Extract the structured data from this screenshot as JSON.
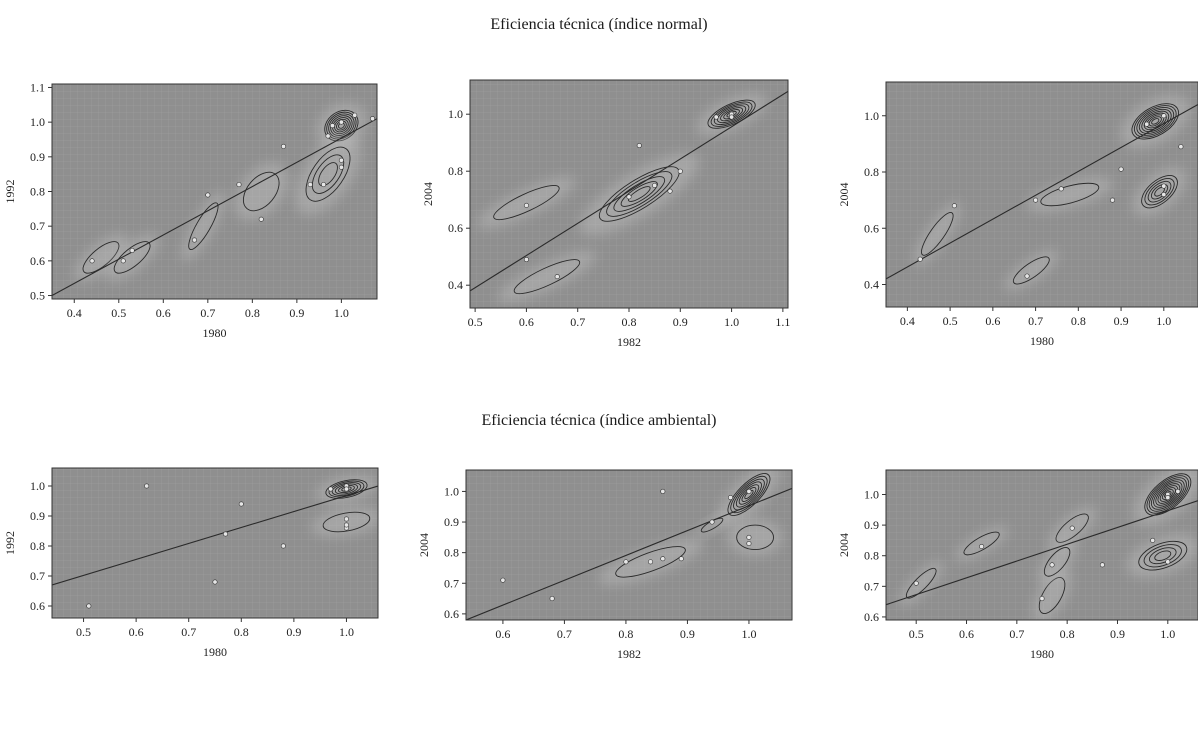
{
  "section_titles": {
    "top": "Eficiencia técnica (índice normal)",
    "bottom": "Eficiencia técnica (índice ambiental)"
  },
  "colors": {
    "plot_bg": "#8f8f8f",
    "grid": "#a9a9a9",
    "contour": "#2a2a2a",
    "halo": "#cfcfcf",
    "point": "#e6e6e6"
  },
  "chart_data": [
    {
      "type": "scatter",
      "xlabel": "1980",
      "ylabel": "1992",
      "xlim": [
        0.35,
        1.08
      ],
      "ylim": [
        0.49,
        1.11
      ],
      "xticks": [
        "0.4",
        "0.5",
        "0.6",
        "0.7",
        "0.8",
        "0.9",
        "1.0"
      ],
      "yticks": [
        "0.5",
        "0.6",
        "0.7",
        "0.8",
        "0.9",
        "1.0",
        "1.1"
      ],
      "diagonal": [
        [
          0.35,
          0.5
        ],
        [
          1.08,
          1.01
        ]
      ],
      "points": [
        [
          0.44,
          0.6
        ],
        [
          0.51,
          0.6
        ],
        [
          0.53,
          0.63
        ],
        [
          0.67,
          0.66
        ],
        [
          0.7,
          0.79
        ],
        [
          0.77,
          0.82
        ],
        [
          0.82,
          0.72
        ],
        [
          0.87,
          0.93
        ],
        [
          0.93,
          0.82
        ],
        [
          0.96,
          0.82
        ],
        [
          0.97,
          0.96
        ],
        [
          0.98,
          0.99
        ],
        [
          1.0,
          1.0
        ],
        [
          1.0,
          0.89
        ],
        [
          1.0,
          0.87
        ],
        [
          1.03,
          1.02
        ],
        [
          1.07,
          1.01
        ]
      ],
      "density": [
        {
          "cx": 1.0,
          "cy": 0.99,
          "sx": 0.04,
          "sy": 0.04,
          "rot": 35,
          "levels": 8
        },
        {
          "cx": 0.97,
          "cy": 0.85,
          "sx": 0.07,
          "sy": 0.045,
          "rot": 55,
          "levels": 3
        },
        {
          "cx": 0.46,
          "cy": 0.61,
          "sx": 0.05,
          "sy": 0.025,
          "rot": 40,
          "levels": 1
        },
        {
          "cx": 0.53,
          "cy": 0.61,
          "sx": 0.05,
          "sy": 0.025,
          "rot": 40,
          "levels": 1
        },
        {
          "cx": 0.69,
          "cy": 0.7,
          "sx": 0.06,
          "sy": 0.02,
          "rot": 60,
          "levels": 1
        },
        {
          "cx": 0.82,
          "cy": 0.8,
          "sx": 0.05,
          "sy": 0.04,
          "rot": 50,
          "levels": 1
        }
      ]
    },
    {
      "type": "scatter",
      "xlabel": "1982",
      "ylabel": "2004",
      "xlim": [
        0.49,
        1.11
      ],
      "ylim": [
        0.32,
        1.12
      ],
      "xticks": [
        "0.5",
        "0.6",
        "0.7",
        "0.8",
        "0.9",
        "1.0",
        "1.1"
      ],
      "yticks": [
        "0.4",
        "0.6",
        "0.8",
        "1.0"
      ],
      "diagonal": [
        [
          0.49,
          0.38
        ],
        [
          1.11,
          1.08
        ]
      ],
      "points": [
        [
          0.6,
          0.49
        ],
        [
          0.6,
          0.68
        ],
        [
          0.66,
          0.43
        ],
        [
          0.8,
          0.71
        ],
        [
          0.82,
          0.89
        ],
        [
          0.85,
          0.75
        ],
        [
          0.88,
          0.73
        ],
        [
          0.9,
          0.8
        ],
        [
          0.97,
          0.99
        ],
        [
          1.0,
          1.0
        ],
        [
          1.0,
          0.99
        ]
      ],
      "density": [
        {
          "cx": 1.0,
          "cy": 1.0,
          "sx": 0.05,
          "sy": 0.035,
          "rot": 25,
          "levels": 7
        },
        {
          "cx": 0.82,
          "cy": 0.72,
          "sx": 0.09,
          "sy": 0.05,
          "rot": 32,
          "levels": 5
        },
        {
          "cx": 0.6,
          "cy": 0.69,
          "sx": 0.07,
          "sy": 0.03,
          "rot": 25,
          "levels": 1
        },
        {
          "cx": 0.64,
          "cy": 0.43,
          "sx": 0.07,
          "sy": 0.03,
          "rot": 25,
          "levels": 1
        }
      ]
    },
    {
      "type": "scatter",
      "xlabel": "1980",
      "ylabel": "2004",
      "xlim": [
        0.35,
        1.08
      ],
      "ylim": [
        0.32,
        1.12
      ],
      "xticks": [
        "0.4",
        "0.5",
        "0.6",
        "0.7",
        "0.8",
        "0.9",
        "1.0"
      ],
      "yticks": [
        "0.4",
        "0.6",
        "0.8",
        "1.0"
      ],
      "diagonal": [
        [
          0.35,
          0.42
        ],
        [
          1.08,
          1.04
        ]
      ],
      "points": [
        [
          0.43,
          0.49
        ],
        [
          0.51,
          0.68
        ],
        [
          0.68,
          0.43
        ],
        [
          0.7,
          0.7
        ],
        [
          0.76,
          0.74
        ],
        [
          0.88,
          0.7
        ],
        [
          0.9,
          0.81
        ],
        [
          0.96,
          0.97
        ],
        [
          1.0,
          1.0
        ],
        [
          1.0,
          0.72
        ],
        [
          1.0,
          0.75
        ],
        [
          1.04,
          0.89
        ]
      ],
      "density": [
        {
          "cx": 0.98,
          "cy": 0.98,
          "sx": 0.06,
          "sy": 0.05,
          "rot": 30,
          "levels": 9
        },
        {
          "cx": 0.99,
          "cy": 0.73,
          "sx": 0.05,
          "sy": 0.04,
          "rot": 40,
          "levels": 5
        },
        {
          "cx": 0.47,
          "cy": 0.58,
          "sx": 0.06,
          "sy": 0.025,
          "rot": 55,
          "levels": 1
        },
        {
          "cx": 0.69,
          "cy": 0.45,
          "sx": 0.05,
          "sy": 0.025,
          "rot": 35,
          "levels": 1
        },
        {
          "cx": 0.78,
          "cy": 0.72,
          "sx": 0.07,
          "sy": 0.03,
          "rot": 15,
          "levels": 1
        }
      ]
    },
    {
      "type": "scatter",
      "xlabel": "1980",
      "ylabel": "1992",
      "xlim": [
        0.44,
        1.06
      ],
      "ylim": [
        0.56,
        1.06
      ],
      "xticks": [
        "0.5",
        "0.6",
        "0.7",
        "0.8",
        "0.9",
        "1.0"
      ],
      "yticks": [
        "0.6",
        "0.7",
        "0.8",
        "0.9",
        "1.0"
      ],
      "diagonal": [
        [
          0.44,
          0.67
        ],
        [
          1.06,
          1.0
        ]
      ],
      "points": [
        [
          0.51,
          0.6
        ],
        [
          0.62,
          1.0
        ],
        [
          0.75,
          0.68
        ],
        [
          0.77,
          0.84
        ],
        [
          0.8,
          0.94
        ],
        [
          0.88,
          0.8
        ],
        [
          0.97,
          0.99
        ],
        [
          1.0,
          1.0
        ],
        [
          1.0,
          0.99
        ],
        [
          1.0,
          0.89
        ],
        [
          1.0,
          0.86
        ],
        [
          1.0,
          0.87
        ]
      ],
      "density": [
        {
          "cx": 1.0,
          "cy": 0.99,
          "sx": 0.04,
          "sy": 0.028,
          "rot": 12,
          "levels": 6
        },
        {
          "cx": 1.0,
          "cy": 0.88,
          "sx": 0.045,
          "sy": 0.03,
          "rot": 10,
          "levels": 1
        }
      ]
    },
    {
      "type": "scatter",
      "xlabel": "1982",
      "ylabel": "2004",
      "xlim": [
        0.54,
        1.07
      ],
      "ylim": [
        0.58,
        1.07
      ],
      "xticks": [
        "0.6",
        "0.7",
        "0.8",
        "0.9",
        "1.0"
      ],
      "yticks": [
        "0.6",
        "0.7",
        "0.8",
        "0.9",
        "1.0"
      ],
      "diagonal": [
        [
          0.54,
          0.58
        ],
        [
          1.07,
          1.01
        ]
      ],
      "points": [
        [
          0.6,
          0.71
        ],
        [
          0.68,
          0.65
        ],
        [
          0.8,
          0.77
        ],
        [
          0.84,
          0.77
        ],
        [
          0.86,
          0.78
        ],
        [
          0.86,
          1.0
        ],
        [
          0.89,
          0.78
        ],
        [
          0.94,
          0.9
        ],
        [
          0.97,
          0.98
        ],
        [
          1.0,
          1.0
        ],
        [
          1.0,
          0.85
        ],
        [
          1.0,
          0.83
        ]
      ],
      "density": [
        {
          "cx": 1.0,
          "cy": 0.99,
          "sx": 0.045,
          "sy": 0.035,
          "rot": 45,
          "levels": 7
        },
        {
          "cx": 0.84,
          "cy": 0.77,
          "sx": 0.06,
          "sy": 0.03,
          "rot": 20,
          "levels": 1
        },
        {
          "cx": 1.01,
          "cy": 0.85,
          "sx": 0.03,
          "sy": 0.04,
          "rot": 0,
          "levels": 1
        },
        {
          "cx": 0.94,
          "cy": 0.89,
          "sx": 0.02,
          "sy": 0.012,
          "rot": 30,
          "levels": 1
        }
      ]
    },
    {
      "type": "scatter",
      "xlabel": "1980",
      "ylabel": "2004",
      "xlim": [
        0.44,
        1.06
      ],
      "ylim": [
        0.59,
        1.08
      ],
      "xticks": [
        "0.5",
        "0.6",
        "0.7",
        "0.8",
        "0.9",
        "1.0"
      ],
      "yticks": [
        "0.6",
        "0.7",
        "0.8",
        "0.9",
        "1.0"
      ],
      "diagonal": [
        [
          0.44,
          0.64
        ],
        [
          1.06,
          0.98
        ]
      ],
      "points": [
        [
          0.5,
          0.71
        ],
        [
          0.63,
          0.83
        ],
        [
          0.75,
          0.66
        ],
        [
          0.77,
          0.77
        ],
        [
          0.81,
          0.89
        ],
        [
          0.87,
          0.77
        ],
        [
          0.97,
          0.85
        ],
        [
          1.0,
          0.78
        ],
        [
          1.0,
          1.0
        ],
        [
          1.0,
          0.99
        ],
        [
          1.02,
          1.01
        ]
      ],
      "density": [
        {
          "cx": 1.0,
          "cy": 1.0,
          "sx": 0.055,
          "sy": 0.045,
          "rot": 40,
          "levels": 10
        },
        {
          "cx": 0.99,
          "cy": 0.8,
          "sx": 0.05,
          "sy": 0.04,
          "rot": 20,
          "levels": 4
        },
        {
          "cx": 0.51,
          "cy": 0.71,
          "sx": 0.04,
          "sy": 0.02,
          "rot": 45,
          "levels": 1
        },
        {
          "cx": 0.63,
          "cy": 0.84,
          "sx": 0.04,
          "sy": 0.02,
          "rot": 30,
          "levels": 1
        },
        {
          "cx": 0.81,
          "cy": 0.89,
          "sx": 0.04,
          "sy": 0.025,
          "rot": 40,
          "levels": 1
        },
        {
          "cx": 0.77,
          "cy": 0.67,
          "sx": 0.04,
          "sy": 0.03,
          "rot": 60,
          "levels": 1
        },
        {
          "cx": 0.78,
          "cy": 0.78,
          "sx": 0.035,
          "sy": 0.025,
          "rot": 50,
          "levels": 1
        }
      ]
    }
  ]
}
